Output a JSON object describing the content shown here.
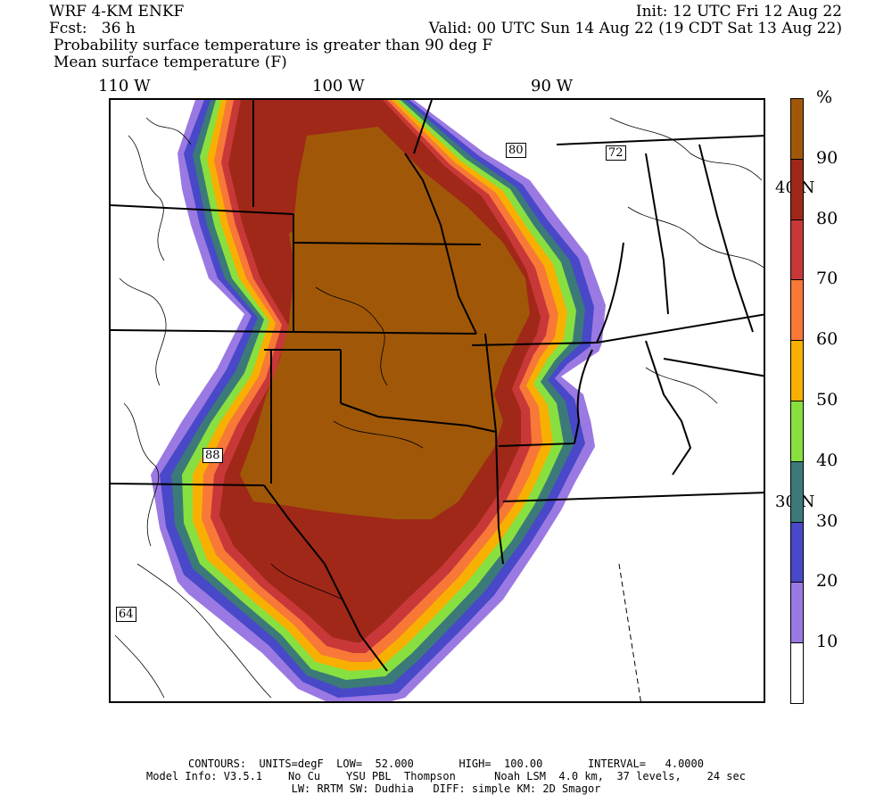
{
  "header": {
    "model": "WRF 4-KM ENKF",
    "init": "Init: 12 UTC Fri 12 Aug 22",
    "fcst": "Fcst:   36 h",
    "valid": "Valid: 00 UTC Sun 14 Aug 22 (19 CDT Sat 13 Aug 22)",
    "line3": "Probability surface temperature is greater than 90 deg F",
    "line4": "Mean surface temperature (F)"
  },
  "lon_labels": [
    "110 W",
    "100 W",
    "90 W"
  ],
  "lat_labels": [
    "40 N",
    "30 N"
  ],
  "highway_labels": [
    "80",
    "72",
    "88",
    "64"
  ],
  "colorbar": {
    "unit": "%",
    "bins": [
      {
        "label": "",
        "color": "#ffffff"
      },
      {
        "label": "10",
        "color": "#9b79e3"
      },
      {
        "label": "20",
        "color": "#4848c8"
      },
      {
        "label": "30",
        "color": "#3b7a78"
      },
      {
        "label": "40",
        "color": "#88e040"
      },
      {
        "label": "50",
        "color": "#f8b000"
      },
      {
        "label": "60",
        "color": "#f87838"
      },
      {
        "label": "70",
        "color": "#c83838"
      },
      {
        "label": "80",
        "color": "#a02818"
      },
      {
        "label": "90",
        "color": "#a05808"
      }
    ]
  },
  "footer": {
    "line1": "CONTOURS:  UNITS=degF  LOW=  52.000       HIGH=  100.00       INTERVAL=   4.0000",
    "line2": "Model Info: V3.5.1    No Cu    YSU PBL  Thompson      Noah LSM  4.0 km,  37 levels,    24 sec",
    "line3": "LW: RRTM SW: Dudhia   DIFF: simple KM: 2D Smagor"
  }
}
